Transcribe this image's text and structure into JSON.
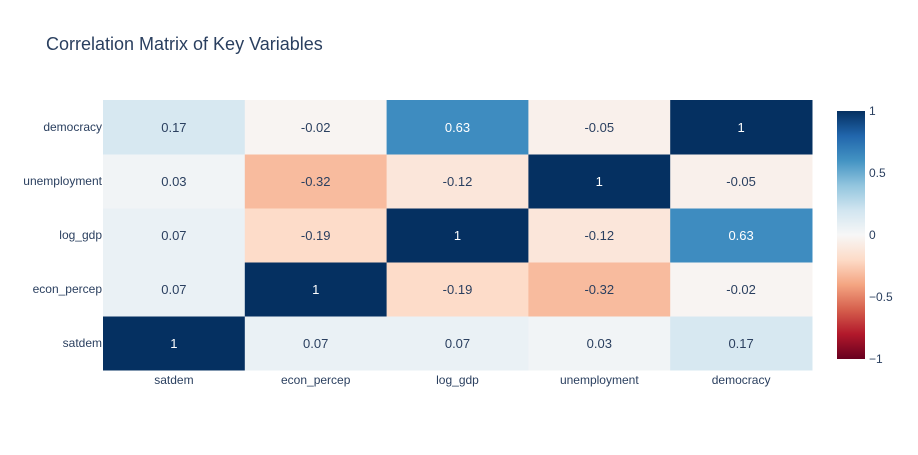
{
  "chart_data": {
    "type": "heatmap",
    "title": "Correlation Matrix of Key Variables",
    "x_categories": [
      "satdem",
      "econ_percep",
      "log_gdp",
      "unemployment",
      "democracy"
    ],
    "y_categories": [
      "satdem",
      "econ_percep",
      "log_gdp",
      "unemployment",
      "democracy"
    ],
    "z": [
      [
        1,
        0.07,
        0.07,
        0.03,
        0.17
      ],
      [
        0.07,
        1,
        -0.19,
        -0.32,
        -0.02
      ],
      [
        0.07,
        -0.19,
        1,
        -0.12,
        0.63
      ],
      [
        0.03,
        -0.32,
        -0.12,
        1,
        -0.05
      ],
      [
        0.17,
        -0.02,
        0.63,
        -0.05,
        1
      ]
    ],
    "zmin": -1,
    "zmax": 1,
    "colorscale": "RdBu",
    "colorbar": {
      "tickvals": [
        1,
        0.5,
        0,
        -0.5,
        -1
      ],
      "ticktext": [
        "1",
        "0.5",
        "0",
        "−0.5",
        "−1"
      ]
    },
    "colors": {
      "title": "#2a3f5f",
      "axis_text": "#2a3f5f",
      "text_dark": "#2a3f5f",
      "text_light": "#ffffff"
    }
  }
}
